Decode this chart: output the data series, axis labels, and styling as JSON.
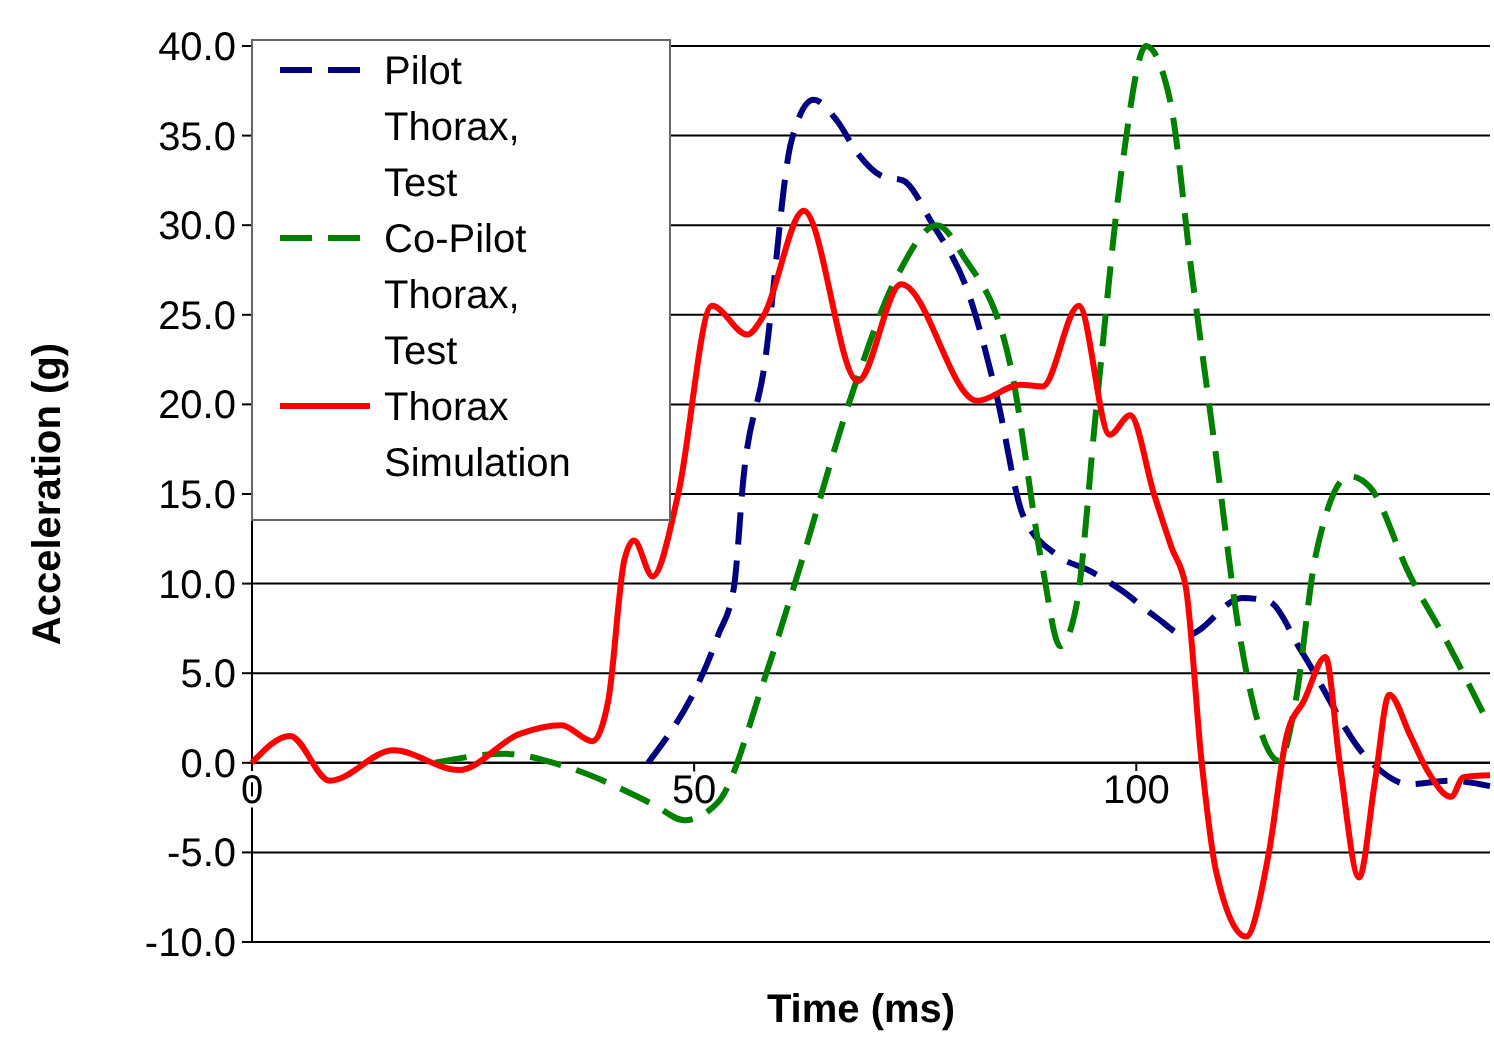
{
  "chart_data": {
    "type": "line",
    "xlabel": "Time (ms)",
    "ylabel": "Acceleration (g)",
    "xlim": [
      0,
      140
    ],
    "xticks": [
      0,
      50,
      100
    ],
    "ylim": [
      -10,
      40
    ],
    "yticks": [
      {
        "value": -10,
        "label": "-10.0"
      },
      {
        "value": -5,
        "label": "-5.0"
      },
      {
        "value": 0,
        "label": "0.0"
      },
      {
        "value": 5,
        "label": "5.0"
      },
      {
        "value": 10,
        "label": "10.0"
      },
      {
        "value": 15,
        "label": "15.0"
      },
      {
        "value": 20,
        "label": "20.0"
      },
      {
        "value": 25,
        "label": "25.0"
      },
      {
        "value": 30,
        "label": "30.0"
      },
      {
        "value": 35,
        "label": "35.0"
      },
      {
        "value": 40,
        "label": "40.0"
      }
    ],
    "grid": "y",
    "legend": "top left",
    "marker": "none",
    "series": [
      {
        "name": "Pilot Thorax, Test",
        "color": "#000080",
        "line_style": "dashed",
        "x": [
          44.8,
          52.7,
          54.5,
          55.6,
          57.9,
          61,
          63.5,
          66.2,
          68.5,
          71.4,
          73.6,
          76.8,
          81.3,
          84.2,
          87.2,
          91,
          94.8,
          98.4,
          102.3,
          105.6,
          112,
          115,
          118.7,
          126.4,
          130.9,
          135.4,
          140
        ],
        "values": [
          0,
          7.1,
          9.8,
          16,
          22,
          34.7,
          37,
          35.8,
          34,
          32.7,
          32.5,
          30.2,
          25.8,
          20.5,
          13.8,
          11.6,
          10.7,
          9.6,
          8.1,
          7.1,
          9.2,
          9,
          6.2,
          0.1,
          -1.2,
          -1,
          -1.3
        ]
      },
      {
        "name": "Co-Pilot Thorax, Test",
        "color": "#008000",
        "line_style": "dashed",
        "x": [
          20.7,
          28.6,
          35.4,
          45.3,
          48.9,
          52.7,
          57.9,
          61.7,
          67.8,
          73,
          77.5,
          80.4,
          85.8,
          89.4,
          91.4,
          93.2,
          95.5,
          98.4,
          101.1,
          103.8,
          106.3,
          109,
          111.7,
          116.2,
          117.9,
          120.3,
          124.1,
          126.4,
          130.9,
          135.4,
          139.4
        ],
        "values": [
          0,
          0.5,
          -0.2,
          -2.3,
          -3.2,
          -2.2,
          4.6,
          10.5,
          20.5,
          27.2,
          30,
          28.3,
          22.1,
          10.9,
          6.5,
          8.7,
          19.9,
          33.3,
          40,
          37,
          27.2,
          17.2,
          7.1,
          0.1,
          3.1,
          11.6,
          16,
          15.4,
          10.5,
          6.5,
          2.6
        ]
      },
      {
        "name": "Thorax Simulation",
        "color": "#ff0000",
        "line_style": "solid",
        "x": [
          0,
          4.3,
          8.8,
          16,
          23.4,
          30.2,
          35,
          38.5,
          40.3,
          42.1,
          43.2,
          45.3,
          48.2,
          52,
          56,
          57.9,
          62.4,
          68.5,
          73.4,
          82,
          86.9,
          89.4,
          93.5,
          97,
          99.3,
          102,
          104,
          105.6,
          107.4,
          109,
          112.4,
          115,
          117,
          119,
          121.4,
          123,
          125.2,
          127,
          128.6,
          131,
          133,
          135.6,
          137,
          140
        ],
        "values": [
          0,
          1.5,
          -1,
          0.7,
          -0.4,
          1.6,
          2.1,
          1.2,
          3.5,
          11.3,
          12.4,
          10.4,
          15,
          25.5,
          23.9,
          25,
          30.8,
          21.3,
          26.7,
          20.2,
          21.1,
          21,
          25.5,
          18.3,
          19.4,
          15,
          12,
          9.8,
          0,
          -6,
          -9.7,
          -5,
          1.5,
          3.5,
          5.9,
          0,
          -6.4,
          -1,
          3.8,
          1.5,
          -0.5,
          -1.9,
          -0.8,
          -0.7
        ]
      }
    ]
  }
}
